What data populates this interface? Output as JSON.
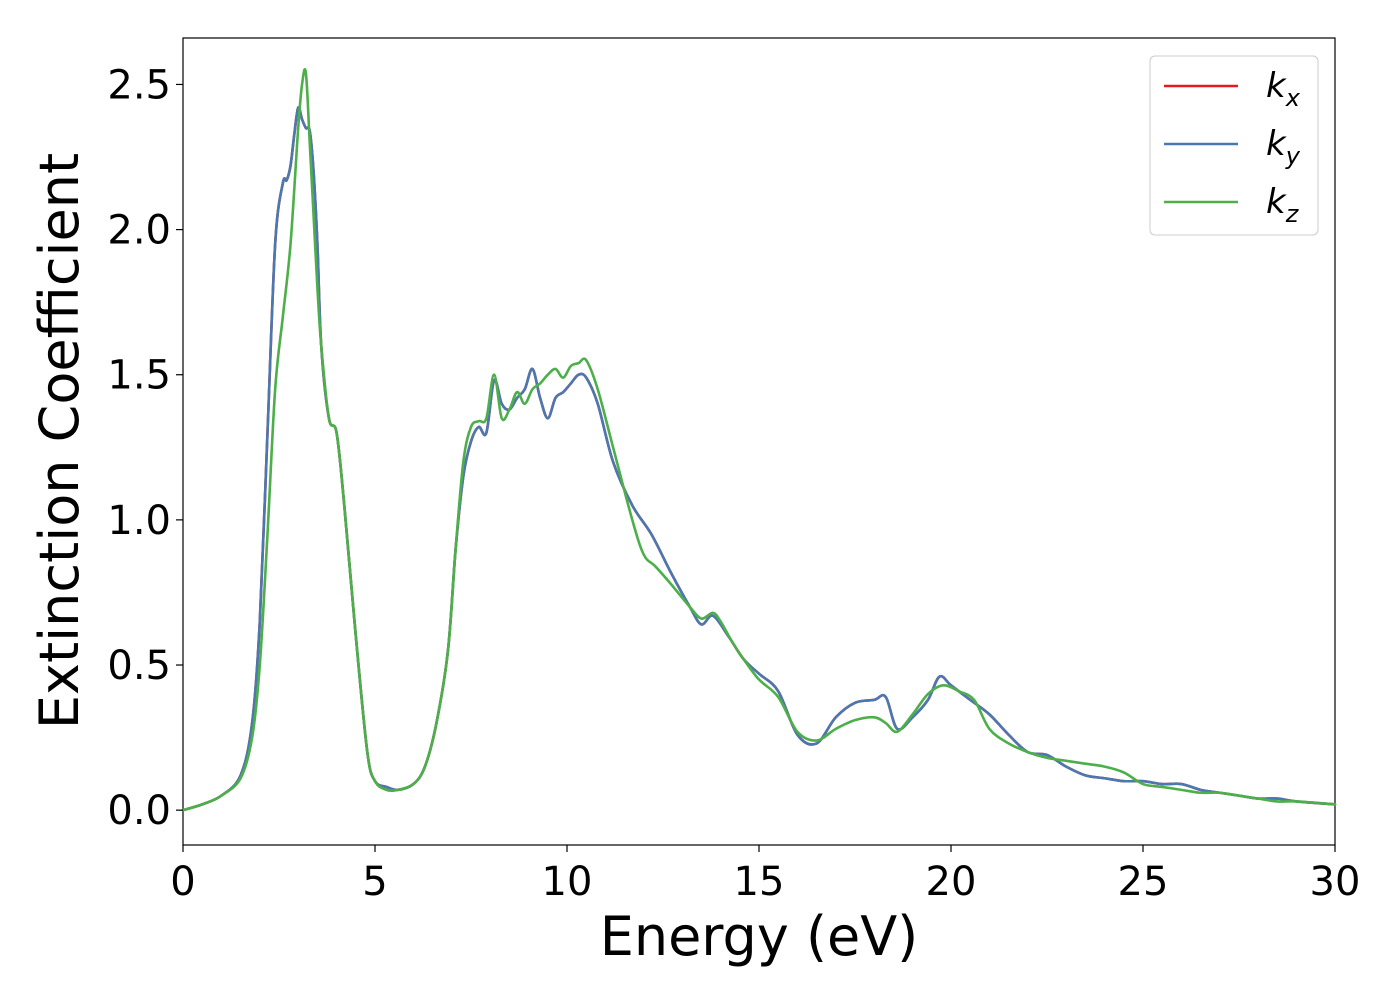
{
  "chart_data": {
    "type": "line",
    "title": "",
    "xlabel": "Energy (eV)",
    "ylabel": "Extinction Coefficient",
    "xlim": [
      0,
      30
    ],
    "ylim": [
      -0.12,
      2.66
    ],
    "xticks": [
      0,
      5,
      10,
      15,
      20,
      25,
      30
    ],
    "xtick_labels": [
      "0",
      "5",
      "10",
      "15",
      "20",
      "25",
      "30"
    ],
    "yticks": [
      0.0,
      0.5,
      1.0,
      1.5,
      2.0,
      2.5
    ],
    "ytick_labels": [
      "0.0",
      "0.5",
      "1.0",
      "1.5",
      "2.0",
      "2.5"
    ],
    "grid": false,
    "legend_position": "top-right",
    "series": [
      {
        "name": "k_x",
        "label_main": "k",
        "label_sub": "x",
        "color": "#e41a1c",
        "x": [
          0,
          0.5,
          1.0,
          1.5,
          1.8,
          2.0,
          2.2,
          2.4,
          2.6,
          2.7,
          2.8,
          2.9,
          3.0,
          3.1,
          3.2,
          3.3,
          3.4,
          3.5,
          3.6,
          3.8,
          4.0,
          4.2,
          4.5,
          4.8,
          5.0,
          5.3,
          5.6,
          6.0,
          6.3,
          6.6,
          6.9,
          7.1,
          7.3,
          7.5,
          7.7,
          7.9,
          8.1,
          8.3,
          8.5,
          8.7,
          8.9,
          9.1,
          9.3,
          9.5,
          9.7,
          9.9,
          10.1,
          10.3,
          10.5,
          10.8,
          11.2,
          11.7,
          12.2,
          12.7,
          13.2,
          13.5,
          13.8,
          14.2,
          14.6,
          15.0,
          15.5,
          16.0,
          16.5,
          17.0,
          17.5,
          18.0,
          18.3,
          18.6,
          19.0,
          19.4,
          19.7,
          20.0,
          20.5,
          21.0,
          21.5,
          22.0,
          22.5,
          23.0,
          23.5,
          24.0,
          24.5,
          25.0,
          25.5,
          26.0,
          26.5,
          27.0,
          27.5,
          28.0,
          28.5,
          29.0,
          30.0
        ],
        "y": [
          0.0,
          0.02,
          0.05,
          0.12,
          0.3,
          0.65,
          1.3,
          1.95,
          2.16,
          2.17,
          2.22,
          2.33,
          2.42,
          2.38,
          2.35,
          2.34,
          2.2,
          1.95,
          1.6,
          1.35,
          1.3,
          1.05,
          0.6,
          0.2,
          0.1,
          0.08,
          0.07,
          0.09,
          0.15,
          0.3,
          0.55,
          0.9,
          1.15,
          1.27,
          1.32,
          1.3,
          1.48,
          1.4,
          1.38,
          1.42,
          1.45,
          1.52,
          1.42,
          1.35,
          1.42,
          1.44,
          1.47,
          1.5,
          1.49,
          1.4,
          1.2,
          1.05,
          0.95,
          0.82,
          0.7,
          0.64,
          0.67,
          0.6,
          0.52,
          0.47,
          0.41,
          0.26,
          0.23,
          0.32,
          0.37,
          0.38,
          0.39,
          0.28,
          0.32,
          0.38,
          0.46,
          0.43,
          0.38,
          0.33,
          0.26,
          0.2,
          0.19,
          0.15,
          0.12,
          0.11,
          0.1,
          0.1,
          0.09,
          0.09,
          0.07,
          0.06,
          0.05,
          0.04,
          0.04,
          0.03,
          0.02
        ]
      },
      {
        "name": "k_y",
        "label_main": "k",
        "label_sub": "y",
        "color": "#4a78b0",
        "x": [
          0,
          0.5,
          1.0,
          1.5,
          1.8,
          2.0,
          2.2,
          2.4,
          2.6,
          2.7,
          2.8,
          2.9,
          3.0,
          3.1,
          3.2,
          3.3,
          3.4,
          3.5,
          3.6,
          3.8,
          4.0,
          4.2,
          4.5,
          4.8,
          5.0,
          5.3,
          5.6,
          6.0,
          6.3,
          6.6,
          6.9,
          7.1,
          7.3,
          7.5,
          7.7,
          7.9,
          8.1,
          8.3,
          8.5,
          8.7,
          8.9,
          9.1,
          9.3,
          9.5,
          9.7,
          9.9,
          10.1,
          10.3,
          10.5,
          10.8,
          11.2,
          11.7,
          12.2,
          12.7,
          13.2,
          13.5,
          13.8,
          14.2,
          14.6,
          15.0,
          15.5,
          16.0,
          16.5,
          17.0,
          17.5,
          18.0,
          18.3,
          18.6,
          19.0,
          19.4,
          19.7,
          20.0,
          20.5,
          21.0,
          21.5,
          22.0,
          22.5,
          23.0,
          23.5,
          24.0,
          24.5,
          25.0,
          25.5,
          26.0,
          26.5,
          27.0,
          27.5,
          28.0,
          28.5,
          29.0,
          30.0
        ],
        "y": [
          0.0,
          0.02,
          0.05,
          0.12,
          0.3,
          0.65,
          1.3,
          1.95,
          2.16,
          2.17,
          2.22,
          2.33,
          2.42,
          2.38,
          2.35,
          2.34,
          2.2,
          1.95,
          1.6,
          1.35,
          1.3,
          1.05,
          0.6,
          0.2,
          0.1,
          0.08,
          0.07,
          0.09,
          0.15,
          0.3,
          0.55,
          0.9,
          1.15,
          1.27,
          1.32,
          1.3,
          1.48,
          1.4,
          1.38,
          1.42,
          1.45,
          1.52,
          1.42,
          1.35,
          1.42,
          1.44,
          1.47,
          1.5,
          1.49,
          1.4,
          1.2,
          1.05,
          0.95,
          0.82,
          0.7,
          0.64,
          0.67,
          0.6,
          0.52,
          0.47,
          0.41,
          0.26,
          0.23,
          0.32,
          0.37,
          0.38,
          0.39,
          0.28,
          0.32,
          0.38,
          0.46,
          0.43,
          0.38,
          0.33,
          0.26,
          0.2,
          0.19,
          0.15,
          0.12,
          0.11,
          0.1,
          0.1,
          0.09,
          0.09,
          0.07,
          0.06,
          0.05,
          0.04,
          0.04,
          0.03,
          0.02
        ]
      },
      {
        "name": "k_z",
        "label_main": "k",
        "label_sub": "z",
        "color": "#4daf4a",
        "x": [
          0,
          0.5,
          1.0,
          1.5,
          1.8,
          2.0,
          2.2,
          2.4,
          2.6,
          2.8,
          3.0,
          3.1,
          3.2,
          3.3,
          3.4,
          3.5,
          3.6,
          3.8,
          4.0,
          4.2,
          4.5,
          4.8,
          5.0,
          5.3,
          5.6,
          6.0,
          6.3,
          6.6,
          6.9,
          7.1,
          7.3,
          7.5,
          7.7,
          7.9,
          8.1,
          8.3,
          8.5,
          8.7,
          8.9,
          9.1,
          9.3,
          9.5,
          9.7,
          9.9,
          10.1,
          10.3,
          10.5,
          10.8,
          11.2,
          11.7,
          12.0,
          12.3,
          12.7,
          13.2,
          13.5,
          13.8,
          14.0,
          14.3,
          14.6,
          15.0,
          15.5,
          16.0,
          16.5,
          17.0,
          17.5,
          18.0,
          18.3,
          18.6,
          19.0,
          19.4,
          19.8,
          20.2,
          20.6,
          21.0,
          21.5,
          22.0,
          22.5,
          23.0,
          23.5,
          24.0,
          24.5,
          25.0,
          25.5,
          26.0,
          26.5,
          27.0,
          27.5,
          28.0,
          28.5,
          29.0,
          30.0
        ],
        "y": [
          0.0,
          0.02,
          0.05,
          0.11,
          0.25,
          0.5,
          0.95,
          1.45,
          1.7,
          1.95,
          2.35,
          2.5,
          2.54,
          2.3,
          2.05,
          1.8,
          1.6,
          1.35,
          1.3,
          1.05,
          0.6,
          0.2,
          0.1,
          0.07,
          0.07,
          0.09,
          0.15,
          0.3,
          0.55,
          0.9,
          1.2,
          1.32,
          1.34,
          1.35,
          1.5,
          1.35,
          1.38,
          1.44,
          1.4,
          1.45,
          1.47,
          1.5,
          1.52,
          1.49,
          1.53,
          1.54,
          1.55,
          1.45,
          1.25,
          1.0,
          0.88,
          0.84,
          0.78,
          0.7,
          0.66,
          0.68,
          0.65,
          0.58,
          0.52,
          0.45,
          0.39,
          0.27,
          0.24,
          0.28,
          0.31,
          0.32,
          0.3,
          0.27,
          0.33,
          0.4,
          0.43,
          0.41,
          0.38,
          0.28,
          0.23,
          0.2,
          0.18,
          0.17,
          0.16,
          0.15,
          0.13,
          0.09,
          0.08,
          0.07,
          0.06,
          0.06,
          0.05,
          0.04,
          0.03,
          0.03,
          0.02
        ]
      }
    ]
  }
}
